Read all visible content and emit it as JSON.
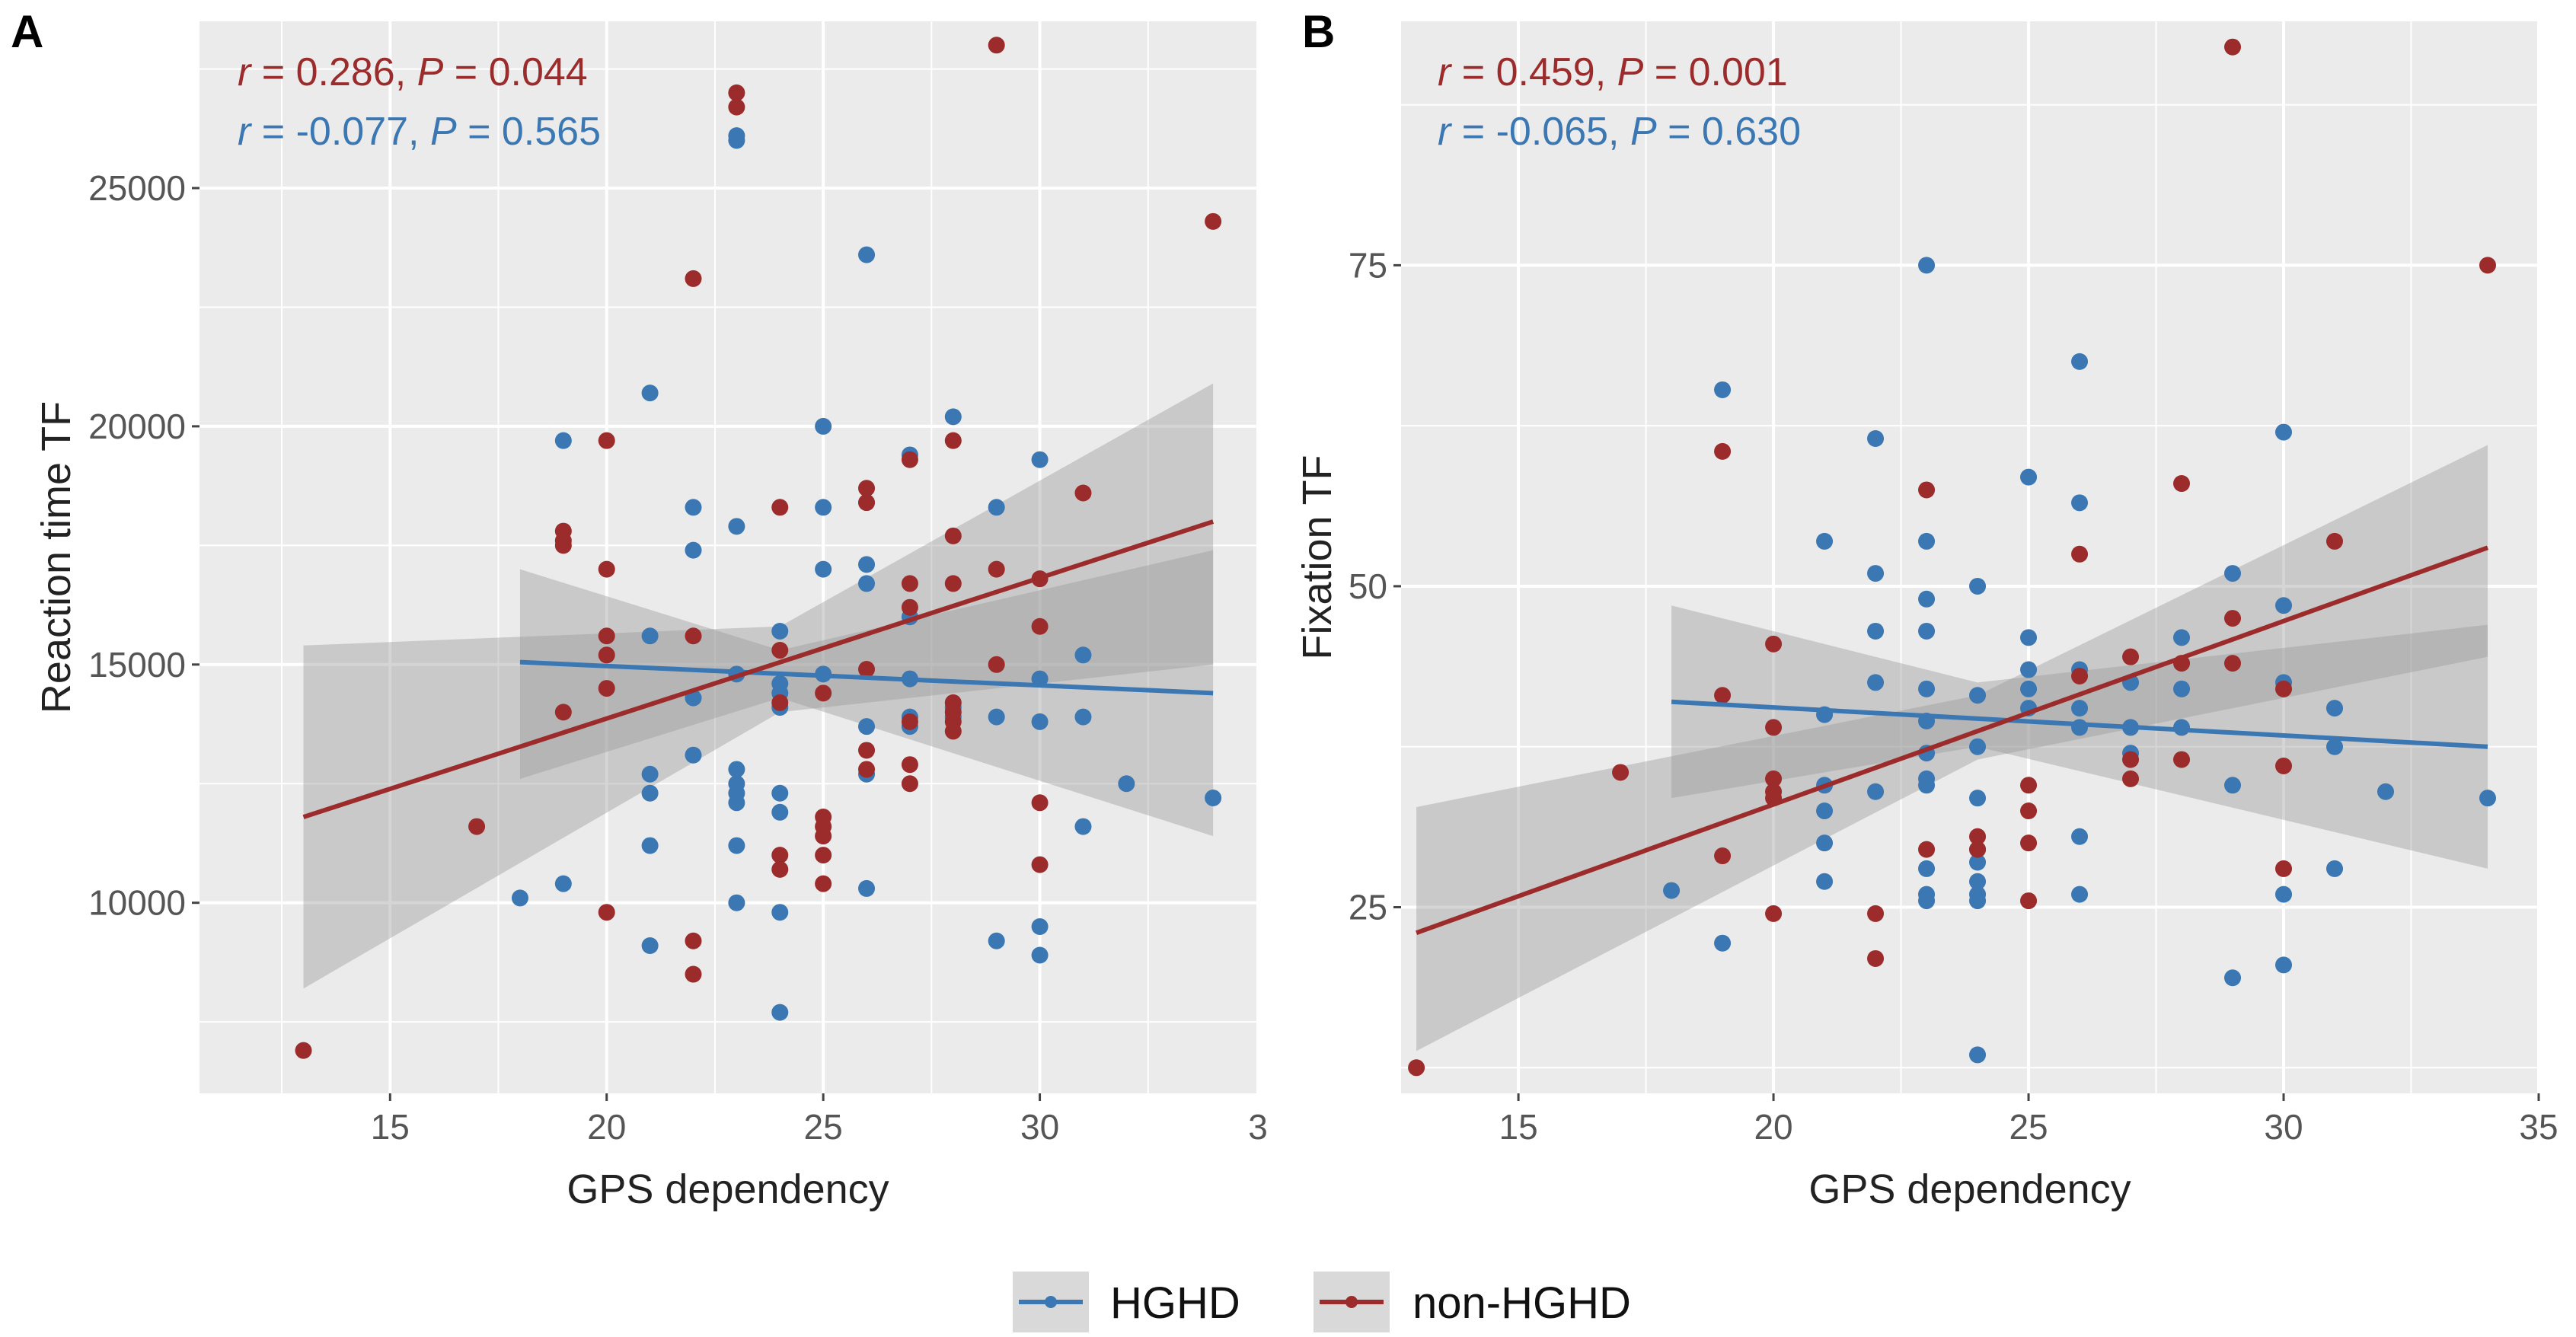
{
  "colors": {
    "hghd": "#3a77b3",
    "non_hghd": "#9c2b2b",
    "panel_bg": "#ebebeb",
    "grid": "#ffffff",
    "ribbon": "#9a9a9a",
    "axis_text": "#555555"
  },
  "legend": {
    "items": [
      {
        "key": "hghd",
        "label": "HGHD"
      },
      {
        "key": "non_hghd",
        "label": "non-HGHD"
      }
    ]
  },
  "panels": [
    {
      "tag": "A",
      "xlabel": "GPS  dependency",
      "ylabel": "Reaction  time  TF",
      "stats": [
        {
          "key": "non_hghd",
          "r": "r",
          "r_rest": " = 0.286, ",
          "p": "P",
          "p_rest": " = 0.044"
        },
        {
          "key": "hghd",
          "r": "r",
          "r_rest": " = -0.077, ",
          "p": "P",
          "p_rest": " = 0.565"
        }
      ]
    },
    {
      "tag": "B",
      "xlabel": "GPS  dependency",
      "ylabel": "Fixation  TF",
      "stats": [
        {
          "key": "non_hghd",
          "r": "r",
          "r_rest": " = 0.459, ",
          "p": "P",
          "p_rest": " = 0.001"
        },
        {
          "key": "hghd",
          "r": "r",
          "r_rest": " = -0.065, ",
          "p": "P",
          "p_rest": " = 0.630"
        }
      ]
    }
  ],
  "chart_data": [
    {
      "type": "scatter",
      "panel": "A",
      "title": "",
      "xlabel": "GPS  dependency",
      "ylabel": "Reaction  time  TF",
      "xlim": [
        10.6,
        35
      ],
      "ylim": [
        6000,
        28500
      ],
      "xticks": [
        15,
        20,
        25,
        30
      ],
      "xtick_labels": [
        "15",
        "20",
        "25",
        "30"
      ],
      "edge_tick_label": "3",
      "yticks": [
        10000,
        15000,
        20000,
        25000
      ],
      "ytick_labels": [
        "10000",
        "15000",
        "20000",
        "25000"
      ],
      "series": [
        {
          "name": "HGHD",
          "key": "hghd",
          "fit": {
            "x": [
              18,
              34
            ],
            "y": [
              15050,
              14400
            ]
          },
          "ribbon": {
            "x": [
              18,
              24,
              34
            ],
            "lower": [
              12600,
              14300,
              11400
            ],
            "upper": [
              17000,
              15300,
              17400
            ]
          },
          "points": [
            [
              18,
              10100
            ],
            [
              19,
              19700
            ],
            [
              19,
              10400
            ],
            [
              21,
              20700
            ],
            [
              21,
              15600
            ],
            [
              21,
              12700
            ],
            [
              21,
              12300
            ],
            [
              21,
              11200
            ],
            [
              21,
              9100
            ],
            [
              22,
              18300
            ],
            [
              22,
              17400
            ],
            [
              22,
              14300
            ],
            [
              22,
              13100
            ],
            [
              23,
              26100
            ],
            [
              23,
              26000
            ],
            [
              23,
              17900
            ],
            [
              23,
              14800
            ],
            [
              23,
              12800
            ],
            [
              23,
              12500
            ],
            [
              23,
              12300
            ],
            [
              23,
              12100
            ],
            [
              23,
              11200
            ],
            [
              23,
              10000
            ],
            [
              24,
              15700
            ],
            [
              24,
              14600
            ],
            [
              24,
              14400
            ],
            [
              24,
              14100
            ],
            [
              24,
              12300
            ],
            [
              24,
              11900
            ],
            [
              24,
              9800
            ],
            [
              24,
              7700
            ],
            [
              25,
              20000
            ],
            [
              25,
              18300
            ],
            [
              25,
              17000
            ],
            [
              25,
              14800
            ],
            [
              26,
              23600
            ],
            [
              26,
              18400
            ],
            [
              26,
              17100
            ],
            [
              26,
              16700
            ],
            [
              26,
              13700
            ],
            [
              26,
              12700
            ],
            [
              26,
              10300
            ],
            [
              27,
              19400
            ],
            [
              27,
              16000
            ],
            [
              27,
              14700
            ],
            [
              27,
              13900
            ],
            [
              27,
              13700
            ],
            [
              28,
              20200
            ],
            [
              28,
              14100
            ],
            [
              28,
              13900
            ],
            [
              29,
              18300
            ],
            [
              29,
              13900
            ],
            [
              29,
              9200
            ],
            [
              30,
              19300
            ],
            [
              30,
              14700
            ],
            [
              30,
              13800
            ],
            [
              30,
              9500
            ],
            [
              30,
              8900
            ],
            [
              31,
              15200
            ],
            [
              31,
              13900
            ],
            [
              31,
              11600
            ],
            [
              32,
              12500
            ],
            [
              34,
              12200
            ]
          ]
        },
        {
          "name": "non-HGHD",
          "key": "non_hghd",
          "fit": {
            "x": [
              13,
              34
            ],
            "y": [
              11800,
              18000
            ]
          },
          "ribbon": {
            "x": [
              13,
              24,
              34
            ],
            "lower": [
              8200,
              14000,
              15000
            ],
            "upper": [
              15400,
              15800,
              20900
            ]
          },
          "points": [
            [
              13,
              6900
            ],
            [
              17,
              11600
            ],
            [
              19,
              17800
            ],
            [
              19,
              17600
            ],
            [
              19,
              17500
            ],
            [
              19,
              14000
            ],
            [
              20,
              19700
            ],
            [
              20,
              17000
            ],
            [
              20,
              15600
            ],
            [
              20,
              15200
            ],
            [
              20,
              14500
            ],
            [
              20,
              9800
            ],
            [
              22,
              23100
            ],
            [
              22,
              15600
            ],
            [
              22,
              9200
            ],
            [
              22,
              8500
            ],
            [
              23,
              27000
            ],
            [
              23,
              26700
            ],
            [
              24,
              18300
            ],
            [
              24,
              15300
            ],
            [
              24,
              14200
            ],
            [
              24,
              11000
            ],
            [
              24,
              10700
            ],
            [
              25,
              11800
            ],
            [
              25,
              11600
            ],
            [
              25,
              11400
            ],
            [
              25,
              11000
            ],
            [
              25,
              10400
            ],
            [
              25,
              14400
            ],
            [
              26,
              18700
            ],
            [
              26,
              18400
            ],
            [
              26,
              14900
            ],
            [
              26,
              13200
            ],
            [
              26,
              12800
            ],
            [
              27,
              19300
            ],
            [
              27,
              16700
            ],
            [
              27,
              16200
            ],
            [
              27,
              13800
            ],
            [
              27,
              12900
            ],
            [
              27,
              12500
            ],
            [
              28,
              19700
            ],
            [
              28,
              17700
            ],
            [
              28,
              16700
            ],
            [
              28,
              14200
            ],
            [
              28,
              14000
            ],
            [
              28,
              13800
            ],
            [
              28,
              13600
            ],
            [
              29,
              28000
            ],
            [
              29,
              17000
            ],
            [
              29,
              15000
            ],
            [
              30,
              16800
            ],
            [
              30,
              15800
            ],
            [
              30,
              12100
            ],
            [
              30,
              10800
            ],
            [
              31,
              18600
            ],
            [
              34,
              24300
            ]
          ]
        }
      ]
    },
    {
      "type": "scatter",
      "panel": "B",
      "title": "",
      "xlabel": "GPS  dependency",
      "ylabel": "Fixation  TF",
      "xlim": [
        12.7,
        35
      ],
      "ylim": [
        10.5,
        94
      ],
      "xticks": [
        15,
        20,
        25,
        30,
        35
      ],
      "xtick_labels": [
        "15",
        "20",
        "25",
        "30",
        "35"
      ],
      "yticks": [
        25,
        50,
        75
      ],
      "ytick_labels": [
        "25",
        "50",
        "75"
      ],
      "series": [
        {
          "name": "HGHD",
          "key": "hghd",
          "fit": {
            "x": [
              18,
              34
            ],
            "y": [
              41,
              37.5
            ]
          },
          "ribbon": {
            "x": [
              18,
              24,
              34
            ],
            "lower": [
              33.5,
              37.5,
              28
            ],
            "upper": [
              48.5,
              42.5,
              47
            ]
          },
          "points": [
            [
              18,
              26.3
            ],
            [
              19,
              65.3
            ],
            [
              19,
              22.2
            ],
            [
              21,
              53.5
            ],
            [
              21,
              40
            ],
            [
              21,
              34.5
            ],
            [
              21,
              32.5
            ],
            [
              21,
              30
            ],
            [
              21,
              27
            ],
            [
              22,
              61.5
            ],
            [
              22,
              51
            ],
            [
              22,
              46.5
            ],
            [
              22,
              42.5
            ],
            [
              22,
              34
            ],
            [
              23,
              75
            ],
            [
              23,
              53.5
            ],
            [
              23,
              49
            ],
            [
              23,
              46.5
            ],
            [
              23,
              42
            ],
            [
              23,
              39.5
            ],
            [
              23,
              37
            ],
            [
              23,
              35
            ],
            [
              23,
              34.5
            ],
            [
              23,
              28
            ],
            [
              23,
              26
            ],
            [
              23,
              25.5
            ],
            [
              24,
              50
            ],
            [
              24,
              41.5
            ],
            [
              24,
              37.5
            ],
            [
              24,
              33.5
            ],
            [
              24,
              29.5
            ],
            [
              24,
              28.5
            ],
            [
              24,
              27
            ],
            [
              24,
              26
            ],
            [
              24,
              25.5
            ],
            [
              24,
              13.5
            ],
            [
              25,
              58.5
            ],
            [
              25,
              46
            ],
            [
              25,
              43.5
            ],
            [
              25,
              42
            ],
            [
              25,
              40.5
            ],
            [
              26,
              67.5
            ],
            [
              26,
              56.5
            ],
            [
              26,
              43.5
            ],
            [
              26,
              40.5
            ],
            [
              26,
              39
            ],
            [
              26,
              30.5
            ],
            [
              26,
              26
            ],
            [
              27,
              42.5
            ],
            [
              27,
              39
            ],
            [
              27,
              37
            ],
            [
              28,
              46
            ],
            [
              28,
              42
            ],
            [
              28,
              39
            ],
            [
              29,
              51
            ],
            [
              29,
              34.5
            ],
            [
              29,
              19.5
            ],
            [
              30,
              62
            ],
            [
              30,
              48.5
            ],
            [
              30,
              42.5
            ],
            [
              30,
              26
            ],
            [
              30,
              20.5
            ],
            [
              31,
              40.5
            ],
            [
              31,
              37.5
            ],
            [
              31,
              28
            ],
            [
              32,
              34
            ],
            [
              34,
              33.5
            ]
          ]
        },
        {
          "name": "non-HGHD",
          "key": "non_hghd",
          "fit": {
            "x": [
              13,
              34
            ],
            "y": [
              23,
              53
            ]
          },
          "ribbon": {
            "x": [
              13,
              24,
              34
            ],
            "lower": [
              13.8,
              36.5,
              44.5
            ],
            "upper": [
              32.8,
              41.5,
              61
            ]
          },
          "points": [
            [
              13,
              12.5
            ],
            [
              17,
              35.5
            ],
            [
              19,
              60.5
            ],
            [
              19,
              41.5
            ],
            [
              19,
              29
            ],
            [
              20,
              45.5
            ],
            [
              20,
              39
            ],
            [
              20,
              35
            ],
            [
              20,
              34
            ],
            [
              20,
              33.5
            ],
            [
              20,
              24.5
            ],
            [
              22,
              24.5
            ],
            [
              22,
              21
            ],
            [
              23,
              57.5
            ],
            [
              23,
              29.5
            ],
            [
              24,
              30.5
            ],
            [
              24,
              29.5
            ],
            [
              25,
              34.5
            ],
            [
              25,
              32.5
            ],
            [
              25,
              30
            ],
            [
              25,
              25.5
            ],
            [
              26,
              52.5
            ],
            [
              26,
              43
            ],
            [
              27,
              44.5
            ],
            [
              27,
              36.5
            ],
            [
              27,
              35
            ],
            [
              28,
              58
            ],
            [
              28,
              44
            ],
            [
              28,
              36.5
            ],
            [
              29,
              47.5
            ],
            [
              29,
              44
            ],
            [
              29,
              92
            ],
            [
              30,
              42
            ],
            [
              30,
              36
            ],
            [
              30,
              28
            ],
            [
              31,
              53.5
            ],
            [
              34,
              75
            ]
          ]
        }
      ]
    }
  ]
}
